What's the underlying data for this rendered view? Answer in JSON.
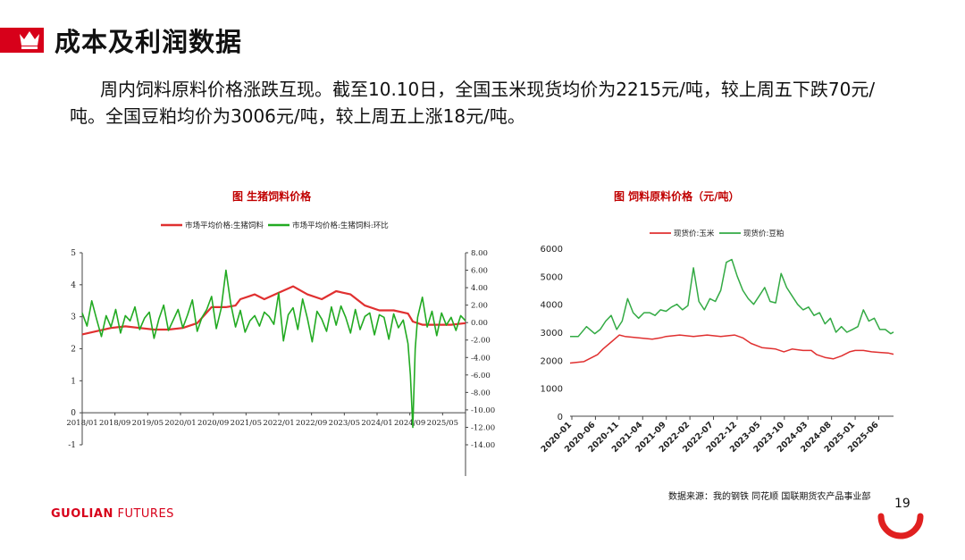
{
  "header": {
    "title": "成本及利润数据",
    "summary": "周内饲料原料价格涨跌互现。截至10.10日，全国玉米现货均价为2215元/吨，较上周五下跌70元/吨。全国豆粕均价为3006元/吨，较上周五上涨18元/吨。"
  },
  "footer": {
    "brand_bold": "GUOLIAN",
    "brand_rest": " FUTURES",
    "source": "数据来源：我的钢铁  同花顺  国联期货农产品事业部",
    "page_number": "19"
  },
  "colors": {
    "red": "#d7001a",
    "green": "#22aa22",
    "corn": "#e03030",
    "soy": "#33aa44"
  },
  "chart_data": [
    {
      "type": "line",
      "title": "图  生猪饲料价格",
      "legend": [
        "市场平均价格:生猪饲料",
        "市场平均价格:生猪饲料:环比"
      ],
      "legend_position": "top",
      "x_tick_labels": [
        "2018/01",
        "2018/09",
        "2019/05",
        "2020/01",
        "2020/09",
        "2021/05",
        "2022/01",
        "2022/09",
        "2023/05",
        "2024/01",
        "2024/09",
        "2025/05"
      ],
      "y_left": {
        "ticks": [
          "5",
          "4",
          "3",
          "2",
          "1",
          "0",
          "-1"
        ],
        "ylim": [
          -1,
          5
        ]
      },
      "y_right": {
        "ticks": [
          "8.00",
          "6.00",
          "4.00",
          "2.00",
          "0.00",
          "-2.00",
          "-4.00",
          "-6.00",
          "-8.00",
          "-10.00",
          "-12.00",
          "-14.00"
        ],
        "ylim": [
          -14,
          8
        ]
      },
      "series": [
        {
          "name": "市场平均价格:生猪饲料",
          "axis": "left",
          "t": [
            0,
            6,
            12,
            18,
            24,
            30,
            36,
            42,
            48,
            54,
            60,
            64,
            66,
            70,
            72,
            76,
            82,
            88,
            94,
            100,
            106,
            112,
            118,
            124,
            130,
            136,
            138,
            142,
            148,
            154,
            160
          ],
          "values": [
            2.45,
            2.55,
            2.65,
            2.7,
            2.65,
            2.6,
            2.6,
            2.65,
            2.8,
            3.3,
            3.3,
            3.35,
            3.55,
            3.65,
            3.7,
            3.55,
            3.75,
            3.95,
            3.7,
            3.55,
            3.8,
            3.7,
            3.35,
            3.2,
            3.2,
            3.1,
            2.85,
            2.75,
            2.75,
            2.75,
            2.8
          ]
        },
        {
          "name": "市场平均价格:生猪饲料:环比",
          "axis": "right",
          "t": [
            0,
            2,
            4,
            6,
            8,
            10,
            12,
            14,
            16,
            18,
            20,
            22,
            24,
            26,
            28,
            30,
            32,
            34,
            36,
            38,
            40,
            42,
            44,
            46,
            48,
            50,
            52,
            54,
            56,
            58,
            60,
            62,
            64,
            66,
            68,
            70,
            72,
            74,
            76,
            78,
            80,
            82,
            84,
            86,
            88,
            90,
            92,
            94,
            96,
            98,
            100,
            102,
            104,
            106,
            108,
            110,
            112,
            114,
            116,
            118,
            120,
            122,
            124,
            126,
            128,
            130,
            132,
            134,
            136,
            137,
            138,
            139,
            140,
            142,
            144,
            146,
            148,
            150,
            152,
            154,
            156,
            158,
            160
          ],
          "values": [
            1.1,
            -0.4,
            2.5,
            0.4,
            -1.6,
            0.8,
            -0.5,
            1.5,
            -1.2,
            0.8,
            0.2,
            1.8,
            -0.8,
            0.5,
            1.2,
            -1.8,
            0.4,
            2.0,
            -0.9,
            0.3,
            1.5,
            -0.6,
            0.9,
            2.6,
            -1.0,
            0.6,
            1.5,
            3.0,
            -0.7,
            1.6,
            6.0,
            2.2,
            -0.5,
            1.4,
            -1.1,
            0.2,
            0.8,
            -0.4,
            1.2,
            0.7,
            -0.2,
            3.4,
            -2.1,
            0.9,
            1.7,
            -0.8,
            2.7,
            0.5,
            -2.2,
            1.3,
            0.4,
            -1.0,
            1.8,
            -0.3,
            1.9,
            0.6,
            -1.2,
            1.5,
            -0.8,
            0.7,
            1.1,
            -1.4,
            0.9,
            0.6,
            -1.9,
            1.0,
            -0.6,
            0.3,
            -2.4,
            -6.0,
            -12.0,
            -3.0,
            0.6,
            2.9,
            -0.5,
            1.3,
            -1.5,
            1.1,
            -0.3,
            0.6,
            -0.9,
            0.8,
            0.2
          ]
        }
      ]
    },
    {
      "type": "line",
      "title": "图    饲料原料价格（元/吨）",
      "legend": [
        "现货价:玉米",
        "现货价:豆粕"
      ],
      "legend_position": "top",
      "x_tick_labels": [
        "2020-01",
        "2020-06",
        "2020-11",
        "2021-04",
        "2021-09",
        "2022-02",
        "2022-07",
        "2022-12",
        "2023-05",
        "2023-10",
        "2024-03",
        "2024-08",
        "2025-01",
        "2025-06"
      ],
      "y_ticks": [
        "6000",
        "5000",
        "4000",
        "3000",
        "2000",
        "1000",
        "0"
      ],
      "ylim": [
        0,
        6000
      ],
      "series": [
        {
          "name": "现货价:玉米",
          "t": [
            0,
            5,
            10,
            12,
            15,
            18,
            20,
            25,
            30,
            33,
            35,
            40,
            45,
            50,
            55,
            60,
            63,
            66,
            70,
            75,
            78,
            81,
            85,
            88,
            90,
            93,
            96,
            99,
            102,
            104,
            107,
            110,
            113,
            116,
            118
          ],
          "values": [
            1900,
            1950,
            2200,
            2400,
            2650,
            2900,
            2850,
            2800,
            2750,
            2800,
            2850,
            2900,
            2850,
            2900,
            2850,
            2900,
            2800,
            2600,
            2450,
            2400,
            2300,
            2400,
            2350,
            2350,
            2200,
            2100,
            2050,
            2150,
            2300,
            2350,
            2350,
            2300,
            2280,
            2260,
            2215
          ]
        },
        {
          "name": "现货价:豆粕",
          "t": [
            0,
            3,
            6,
            9,
            11,
            13,
            15,
            17,
            19,
            21,
            23,
            25,
            27,
            29,
            31,
            33,
            35,
            37,
            39,
            41,
            43,
            45,
            47,
            49,
            51,
            53,
            55,
            57,
            59,
            61,
            63,
            65,
            67,
            69,
            71,
            73,
            75,
            77,
            79,
            81,
            83,
            85,
            87,
            89,
            91,
            93,
            95,
            97,
            99,
            101,
            103,
            105,
            107,
            109,
            111,
            113,
            115,
            117,
            118
          ],
          "values": [
            2850,
            2850,
            3200,
            2950,
            3100,
            3400,
            3600,
            3100,
            3400,
            4200,
            3700,
            3500,
            3700,
            3700,
            3600,
            3800,
            3750,
            3900,
            4000,
            3800,
            3950,
            5300,
            4100,
            3800,
            4200,
            4100,
            4500,
            5500,
            5600,
            5000,
            4500,
            4200,
            4000,
            4300,
            4600,
            4100,
            4050,
            5100,
            4600,
            4300,
            4000,
            3800,
            3900,
            3600,
            3700,
            3300,
            3500,
            3000,
            3200,
            3000,
            3100,
            3200,
            3800,
            3400,
            3500,
            3100,
            3100,
            2950,
            3006
          ]
        }
      ]
    }
  ]
}
